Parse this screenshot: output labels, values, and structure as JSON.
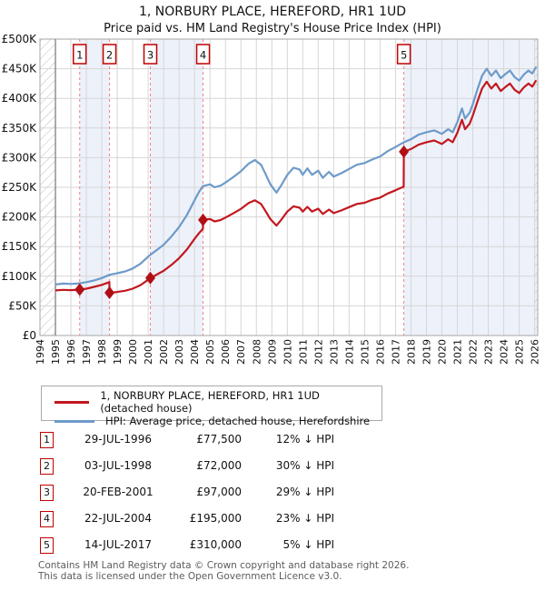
{
  "title": "1, NORBURY PLACE, HEREFORD, HR1 1UD",
  "subtitle": "Price paid vs. HM Land Registry's House Price Index (HPI)",
  "chart_data": {
    "type": "line",
    "xlim": [
      1994,
      2026.2
    ],
    "ylim": [
      0,
      500000
    ],
    "x_ticks": [
      1994,
      1995,
      1996,
      1997,
      1998,
      1999,
      2000,
      2001,
      2002,
      2003,
      2004,
      2005,
      2006,
      2007,
      2008,
      2009,
      2010,
      2011,
      2012,
      2013,
      2014,
      2015,
      2016,
      2017,
      2018,
      2019,
      2020,
      2021,
      2022,
      2023,
      2024,
      2025,
      2026
    ],
    "y_tick_labels": [
      "£0",
      "£50K",
      "£100K",
      "£150K",
      "£200K",
      "£250K",
      "£300K",
      "£350K",
      "£400K",
      "£450K",
      "£500K"
    ],
    "grid": true,
    "legend_position": "below",
    "colors": {
      "property_line": "#c2181e",
      "marker": "#b01015",
      "hpi_line": "#6d9ac9",
      "sale_dashed_line": "#f38181",
      "ownership_band": "#edf1fa",
      "grid_line": "#d6d6d6",
      "plot_border": "#a6a6a6",
      "data_start_line": "#777777",
      "hatch_line": "#bdbdbd",
      "number_box_border": "#c00000"
    },
    "series": [
      {
        "name": "HPI: Average price, detached house, Herefordshire",
        "color": "#6d9ac9",
        "points": [
          [
            1995.0,
            86000
          ],
          [
            1995.5,
            87500
          ],
          [
            1996.0,
            87000
          ],
          [
            1996.57,
            88000
          ],
          [
            1997.0,
            90000
          ],
          [
            1997.5,
            93000
          ],
          [
            1998.0,
            97000
          ],
          [
            1998.5,
            102500
          ],
          [
            1999.0,
            105000
          ],
          [
            1999.5,
            108000
          ],
          [
            2000.0,
            113000
          ],
          [
            2000.5,
            121000
          ],
          [
            2001.0,
            133000
          ],
          [
            2001.14,
            136000
          ],
          [
            2001.5,
            143000
          ],
          [
            2002.0,
            153000
          ],
          [
            2002.5,
            167000
          ],
          [
            2003.0,
            183000
          ],
          [
            2003.5,
            203000
          ],
          [
            2004.0,
            228000
          ],
          [
            2004.3,
            243000
          ],
          [
            2004.55,
            252000
          ],
          [
            2005.0,
            255000
          ],
          [
            2005.3,
            250000
          ],
          [
            2005.7,
            253000
          ],
          [
            2006.0,
            258000
          ],
          [
            2006.5,
            267000
          ],
          [
            2007.0,
            277000
          ],
          [
            2007.5,
            290000
          ],
          [
            2007.9,
            296000
          ],
          [
            2008.3,
            288000
          ],
          [
            2008.6,
            272000
          ],
          [
            2008.9,
            255000
          ],
          [
            2009.3,
            241000
          ],
          [
            2009.6,
            253000
          ],
          [
            2010.0,
            271000
          ],
          [
            2010.4,
            283000
          ],
          [
            2010.8,
            280000
          ],
          [
            2011.0,
            271000
          ],
          [
            2011.3,
            282000
          ],
          [
            2011.6,
            271000
          ],
          [
            2012.0,
            278000
          ],
          [
            2012.3,
            266000
          ],
          [
            2012.7,
            276000
          ],
          [
            2013.0,
            268000
          ],
          [
            2013.5,
            274000
          ],
          [
            2014.0,
            281000
          ],
          [
            2014.5,
            288000
          ],
          [
            2015.0,
            291000
          ],
          [
            2015.5,
            297000
          ],
          [
            2016.0,
            302000
          ],
          [
            2016.5,
            311000
          ],
          [
            2017.0,
            318000
          ],
          [
            2017.54,
            326000
          ],
          [
            2018.0,
            331000
          ],
          [
            2018.5,
            339000
          ],
          [
            2019.0,
            343000
          ],
          [
            2019.5,
            346000
          ],
          [
            2020.0,
            340000
          ],
          [
            2020.4,
            348000
          ],
          [
            2020.7,
            343000
          ],
          [
            2021.0,
            360000
          ],
          [
            2021.3,
            383000
          ],
          [
            2021.5,
            366000
          ],
          [
            2021.8,
            376000
          ],
          [
            2022.0,
            390000
          ],
          [
            2022.3,
            415000
          ],
          [
            2022.6,
            438000
          ],
          [
            2022.9,
            450000
          ],
          [
            2023.2,
            438000
          ],
          [
            2023.5,
            447000
          ],
          [
            2023.8,
            434000
          ],
          [
            2024.1,
            441000
          ],
          [
            2024.4,
            447000
          ],
          [
            2024.7,
            436000
          ],
          [
            2025.0,
            430000
          ],
          [
            2025.3,
            440000
          ],
          [
            2025.6,
            447000
          ],
          [
            2025.85,
            442000
          ],
          [
            2026.1,
            453000
          ]
        ]
      },
      {
        "name": "1, NORBURY PLACE, HEREFORD, HR1 1UD (detached house)",
        "color": "#c2181e",
        "points": [
          [
            1995.0,
            76000
          ],
          [
            1995.5,
            77000
          ],
          [
            1996.0,
            76500
          ],
          [
            1996.57,
            77500
          ],
          [
            1997.0,
            79000
          ],
          [
            1997.5,
            82000
          ],
          [
            1998.0,
            85500
          ],
          [
            1998.49,
            90000
          ],
          [
            1998.5,
            72000
          ],
          [
            1999.0,
            73500
          ],
          [
            1999.5,
            75500
          ],
          [
            2000.0,
            79000
          ],
          [
            2000.5,
            85000
          ],
          [
            2001.0,
            94000
          ],
          [
            2001.14,
            97000
          ],
          [
            2001.5,
            102000
          ],
          [
            2002.0,
            109000
          ],
          [
            2002.5,
            119000
          ],
          [
            2003.0,
            130500
          ],
          [
            2003.5,
            145000
          ],
          [
            2004.0,
            163000
          ],
          [
            2004.3,
            173000
          ],
          [
            2004.54,
            180000
          ],
          [
            2004.55,
            195000
          ],
          [
            2005.0,
            196500
          ],
          [
            2005.3,
            192500
          ],
          [
            2005.7,
            195000
          ],
          [
            2006.0,
            199000
          ],
          [
            2006.5,
            206000
          ],
          [
            2007.0,
            213500
          ],
          [
            2007.5,
            223500
          ],
          [
            2007.9,
            228000
          ],
          [
            2008.3,
            222000
          ],
          [
            2008.6,
            209500
          ],
          [
            2008.9,
            196500
          ],
          [
            2009.3,
            185500
          ],
          [
            2009.6,
            195000
          ],
          [
            2010.0,
            209000
          ],
          [
            2010.4,
            218000
          ],
          [
            2010.8,
            215500
          ],
          [
            2011.0,
            209000
          ],
          [
            2011.3,
            217000
          ],
          [
            2011.6,
            209000
          ],
          [
            2012.0,
            214000
          ],
          [
            2012.3,
            205000
          ],
          [
            2012.7,
            212500
          ],
          [
            2013.0,
            206500
          ],
          [
            2013.5,
            211000
          ],
          [
            2014.0,
            216500
          ],
          [
            2014.5,
            222000
          ],
          [
            2015.0,
            224000
          ],
          [
            2015.5,
            229000
          ],
          [
            2016.0,
            232500
          ],
          [
            2016.5,
            239500
          ],
          [
            2017.0,
            245000
          ],
          [
            2017.53,
            251000
          ],
          [
            2017.54,
            310000
          ],
          [
            2018.0,
            314500
          ],
          [
            2018.5,
            322000
          ],
          [
            2019.0,
            326000
          ],
          [
            2019.5,
            329000
          ],
          [
            2020.0,
            323000
          ],
          [
            2020.4,
            331000
          ],
          [
            2020.7,
            326000
          ],
          [
            2021.0,
            342000
          ],
          [
            2021.3,
            364000
          ],
          [
            2021.5,
            348000
          ],
          [
            2021.8,
            357500
          ],
          [
            2022.0,
            371000
          ],
          [
            2022.3,
            394500
          ],
          [
            2022.6,
            416500
          ],
          [
            2022.9,
            428000
          ],
          [
            2023.2,
            416500
          ],
          [
            2023.5,
            425000
          ],
          [
            2023.8,
            412500
          ],
          [
            2024.1,
            419000
          ],
          [
            2024.4,
            425000
          ],
          [
            2024.7,
            414500
          ],
          [
            2025.0,
            409000
          ],
          [
            2025.3,
            418500
          ],
          [
            2025.6,
            425000
          ],
          [
            2025.85,
            420000
          ],
          [
            2026.1,
            430500
          ]
        ]
      }
    ],
    "sales": [
      {
        "n": "1",
        "year": 1996.57,
        "price": 77500
      },
      {
        "n": "2",
        "year": 1998.5,
        "price": 72000
      },
      {
        "n": "3",
        "year": 2001.14,
        "price": 97000
      },
      {
        "n": "4",
        "year": 2004.55,
        "price": 195000
      },
      {
        "n": "5",
        "year": 2017.54,
        "price": 310000
      }
    ],
    "ownership_bands": [
      [
        1996.57,
        1998.5
      ],
      [
        2001.14,
        2004.55
      ],
      [
        2017.54,
        2026.2
      ]
    ],
    "no_data_bands": [
      [
        1994,
        1995
      ],
      [
        2026.0,
        2026.2
      ]
    ],
    "data_start_year": 1995
  },
  "legend": [
    {
      "label": "1, NORBURY PLACE, HEREFORD, HR1 1UD (detached house)",
      "color": "#c2181e"
    },
    {
      "label": "HPI: Average price, detached house, Herefordshire",
      "color": "#6d9ac9"
    }
  ],
  "table": {
    "rows": [
      {
        "num": "1",
        "date": "29-JUL-1996",
        "price": "£77,500",
        "hpi": "12% ↓ HPI"
      },
      {
        "num": "2",
        "date": "03-JUL-1998",
        "price": "£72,000",
        "hpi": "30% ↓ HPI"
      },
      {
        "num": "3",
        "date": "20-FEB-2001",
        "price": "£97,000",
        "hpi": "29% ↓ HPI"
      },
      {
        "num": "4",
        "date": "22-JUL-2004",
        "price": "£195,000",
        "hpi": "23% ↓ HPI"
      },
      {
        "num": "5",
        "date": "14-JUL-2017",
        "price": "£310,000",
        "hpi": "5% ↓ HPI"
      }
    ]
  },
  "footer": {
    "line1": "Contains HM Land Registry data © Crown copyright and database right 2026.",
    "line2": "This data is licensed under the Open Government Licence v3.0."
  }
}
